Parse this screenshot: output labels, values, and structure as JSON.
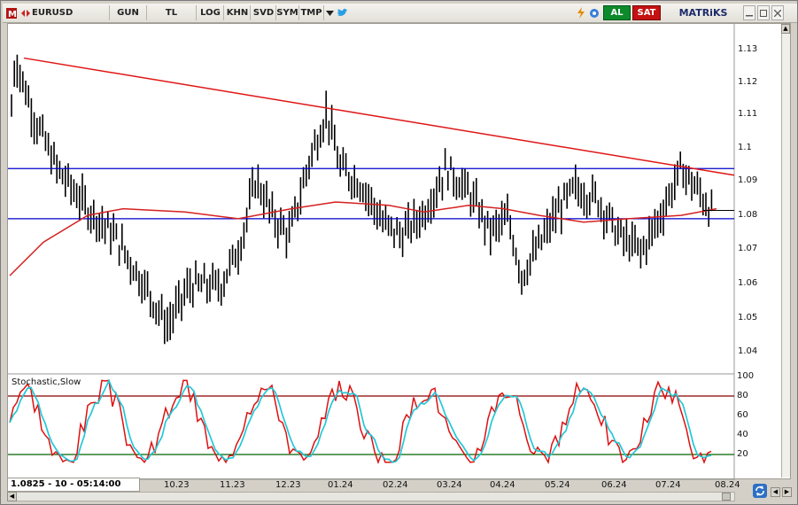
{
  "toolbar": {
    "symbol": "EURUSD",
    "period": "GUN",
    "currency": "TL",
    "buttons": [
      "LOG",
      "KHN",
      "SVD",
      "SYM",
      "TMP"
    ],
    "buy": "AL",
    "sell": "SAT",
    "brand": "MATRiKS"
  },
  "chart_data": {
    "type": "candlestick",
    "price_ticks": [
      "1.13",
      "1.12",
      "1.11",
      "1.1",
      "1.09",
      "1.08",
      "1.07",
      "1.06",
      "1.05",
      "1.04"
    ],
    "x_labels": [
      "10.23",
      "11.23",
      "12.23",
      "01.24",
      "02.24",
      "03.24",
      "04.24",
      "05.24",
      "06.24",
      "07.24",
      "08.24"
    ],
    "horizontal_lines": [
      1.095,
      1.08
    ],
    "trendline": {
      "from": 1.128,
      "to": 1.093
    },
    "stochastic": {
      "title": "Stochastic,Slow",
      "ticks": [
        "100",
        "80",
        "60",
        "40",
        "20"
      ],
      "upper": 80,
      "lower": 20
    },
    "colors": {
      "bars": "#000000",
      "ma": "#d62020",
      "levels": "#0000cc",
      "stoch_k": "#dd1111",
      "stoch_d": "#22c8d8"
    }
  },
  "status": {
    "readout": "1.0825 - 10 - 05:14:00"
  }
}
